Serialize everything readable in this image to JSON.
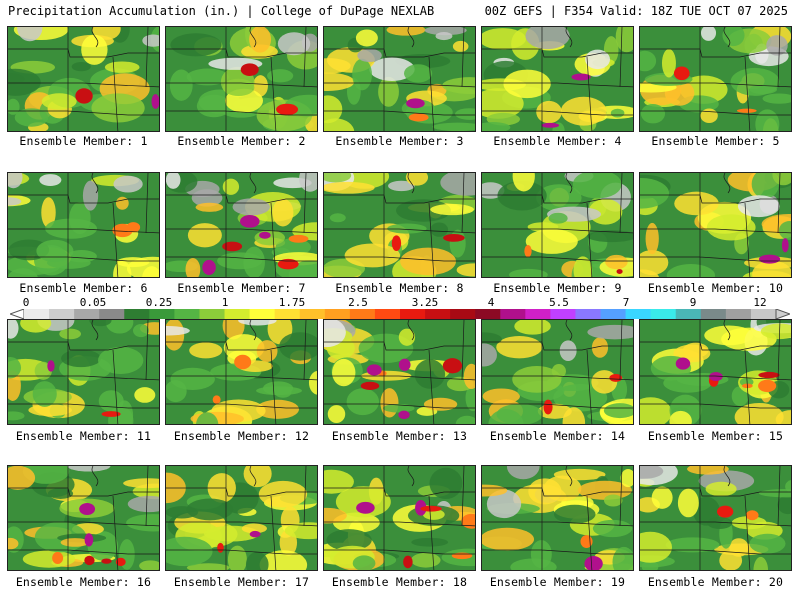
{
  "header": {
    "title": "Precipitation Accumulation (in.) | College of DuPage NEXLAB",
    "model_info": "00Z GEFS | F354 Valid: 18Z TUE OCT 07 2025"
  },
  "colorbar": {
    "labels": [
      "0",
      "0.05",
      "0.25",
      "1",
      "1.75",
      "2.5",
      "3.25",
      "4",
      "5.5",
      "7",
      "9",
      "12"
    ],
    "colors": [
      "#ebebeb",
      "#cdcdcd",
      "#a8a8a8",
      "#8a8a8a",
      "#2e7d32",
      "#3a9a3a",
      "#55b544",
      "#8ccc3a",
      "#d4ec2e",
      "#ffff3a",
      "#ffe033",
      "#ffc02a",
      "#ffa020",
      "#ff7a18",
      "#ff4a12",
      "#e81a10",
      "#c80f12",
      "#a80a14",
      "#8c0a24",
      "#b0108c",
      "#d020c8",
      "#c040ff",
      "#8a78ff",
      "#55a0ff",
      "#3ad6ff",
      "#3aeaea",
      "#4ab6b6",
      "#7a8a8a",
      "#a0a0a0",
      "#c8c8c8"
    ]
  },
  "members": [
    {
      "label": "Ensemble Member: 1"
    },
    {
      "label": "Ensemble Member: 2"
    },
    {
      "label": "Ensemble Member: 3"
    },
    {
      "label": "Ensemble Member: 4"
    },
    {
      "label": "Ensemble Member: 5"
    },
    {
      "label": "Ensemble Member: 6"
    },
    {
      "label": "Ensemble Member: 7"
    },
    {
      "label": "Ensemble Member: 8"
    },
    {
      "label": "Ensemble Member: 9"
    },
    {
      "label": "Ensemble Member: 10"
    },
    {
      "label": "Ensemble Member: 11"
    },
    {
      "label": "Ensemble Member: 12"
    },
    {
      "label": "Ensemble Member: 13"
    },
    {
      "label": "Ensemble Member: 14"
    },
    {
      "label": "Ensemble Member: 15"
    },
    {
      "label": "Ensemble Member: 16"
    },
    {
      "label": "Ensemble Member: 17"
    },
    {
      "label": "Ensemble Member: 18"
    },
    {
      "label": "Ensemble Member: 19"
    },
    {
      "label": "Ensemble Member: 20"
    }
  ]
}
